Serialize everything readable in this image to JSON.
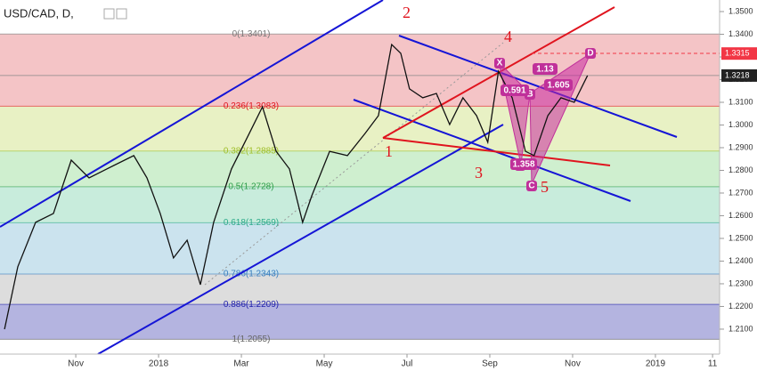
{
  "chart_data": {
    "type": "line",
    "title": "USD/CAD, D,",
    "x": [
      -0.72,
      -0.4,
      0.03,
      0.46,
      0.89,
      1.32,
      1.75,
      2.4,
      2.72,
      3.04,
      3.36,
      3.69,
      4.01,
      4.33,
      4.76,
      5.19,
      5.51,
      5.84,
      6.16,
      6.48,
      6.7,
      7.13,
      7.56,
      7.99,
      8.31,
      8.63,
      8.85,
      9.06,
      9.38,
      9.71,
      10.03,
      10.35,
      10.68,
      10.95,
      11.21,
      11.54,
      11.86,
      12.07,
      12.4,
      12.72,
      13.04,
      13.36
    ],
    "series": [
      {
        "name": "USD/CAD",
        "color": "#111111",
        "values": [
          1.21,
          1.2375,
          1.2571,
          1.261,
          1.2845,
          1.2767,
          1.2806,
          1.2865,
          1.2767,
          1.261,
          1.2414,
          1.2492,
          1.2296,
          1.2571,
          1.2806,
          1.2963,
          1.308,
          1.2884,
          1.2806,
          1.2571,
          1.2688,
          1.2884,
          1.2865,
          1.2963,
          1.3041,
          1.3355,
          1.3316,
          1.3159,
          1.312,
          1.3139,
          1.3002,
          1.312,
          1.3041,
          1.2924,
          1.3237,
          1.312,
          1.2884,
          1.2865,
          1.3041,
          1.312,
          1.31,
          1.3218
        ]
      }
    ],
    "xlim": [
      -0.83,
      16.55
    ],
    "ylim": [
      1.199,
      1.3551
    ],
    "xticks": [
      {
        "value": 1,
        "label": "Nov"
      },
      {
        "value": 3,
        "label": "2018"
      },
      {
        "value": 5,
        "label": "Mar"
      },
      {
        "value": 7,
        "label": "May"
      },
      {
        "value": 9,
        "label": "Jul"
      },
      {
        "value": 11,
        "label": "Sep"
      },
      {
        "value": 13,
        "label": "Nov"
      },
      {
        "value": 15,
        "label": "2019"
      },
      {
        "value": 16.38,
        "label": "11"
      }
    ],
    "yticks": [
      {
        "value": 1.35,
        "label": "1.3500"
      },
      {
        "value": 1.34,
        "label": "1.3400"
      },
      {
        "value": 1.33,
        "label": "1.3300"
      },
      {
        "value": 1.32,
        "label": "1.3200"
      },
      {
        "value": 1.31,
        "label": "1.3100"
      },
      {
        "value": 1.3,
        "label": "1.3000"
      },
      {
        "value": 1.29,
        "label": "1.2900"
      },
      {
        "value": 1.28,
        "label": "1.2800"
      },
      {
        "value": 1.27,
        "label": "1.2700"
      },
      {
        "value": 1.26,
        "label": "1.2600"
      },
      {
        "value": 1.25,
        "label": "1.2500"
      },
      {
        "value": 1.24,
        "label": "1.2400"
      },
      {
        "value": 1.23,
        "label": "1.2300"
      },
      {
        "value": 1.22,
        "label": "1.2200"
      },
      {
        "value": 1.21,
        "label": "1.2100"
      }
    ],
    "fib_levels": [
      {
        "value": 1.3401,
        "label": "0(1.3401)",
        "color": "#f4c4c6",
        "text_color": "#777777"
      },
      {
        "value": 1.3083,
        "label": "0.236(1.3083)",
        "color": "#e8f1c4",
        "text_color": "#e0141e"
      },
      {
        "value": 1.2885,
        "label": "0.382(1.2885)",
        "color": "#cfefcf",
        "text_color": "#9fbf2a"
      },
      {
        "value": 1.2728,
        "label": "0.5(1.2728)",
        "color": "#c8ecdc",
        "text_color": "#2e9e4a"
      },
      {
        "value": 1.2569,
        "label": "0.618(1.2569)",
        "color": "#cbe3ee",
        "text_color": "#2eaa8a"
      },
      {
        "value": 1.2343,
        "label": "0.786(1.2343)",
        "color": "#dddddd",
        "text_color": "#3a7fbf"
      },
      {
        "value": 1.2209,
        "label": "0.886(1.2209)",
        "color": "#b4b4e0",
        "text_color": "#2222aa"
      },
      {
        "value": 1.2055,
        "label": "1(1.2055)",
        "text_color": "#666666"
      }
    ],
    "price_markers": [
      {
        "value": 1.3315,
        "label": "1.3315",
        "color": "#f23645"
      },
      {
        "value": 1.3218,
        "label": "1.3218",
        "color": "#222222"
      }
    ],
    "annotations": {
      "wave": [
        "1",
        "2",
        "3",
        "4",
        "5"
      ],
      "points": [
        "X",
        "A",
        "B",
        "C",
        "D"
      ],
      "ratios": [
        "1.13",
        "0.591",
        "1.605",
        "1.358"
      ]
    }
  }
}
